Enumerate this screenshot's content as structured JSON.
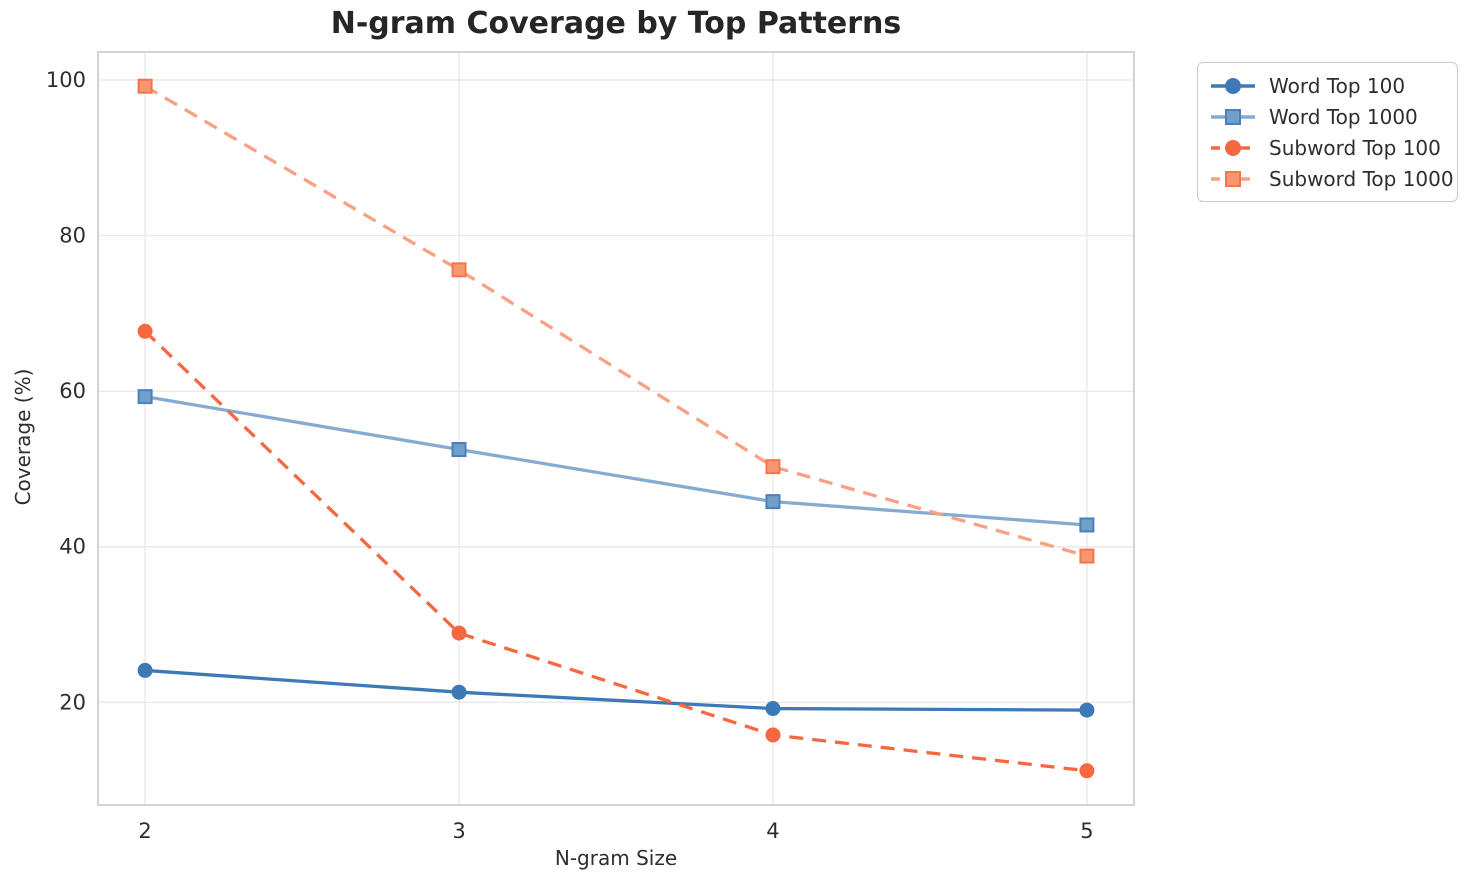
{
  "chart_data": {
    "type": "line",
    "title": "N-gram Coverage by Top Patterns",
    "xlabel": "N-gram Size",
    "ylabel": "Coverage (%)",
    "x": [
      2,
      3,
      4,
      5
    ],
    "xticks": [
      "2",
      "3",
      "4",
      "5"
    ],
    "yticks": [
      "20",
      "40",
      "60",
      "80",
      "100"
    ],
    "ytick_values": [
      20,
      40,
      60,
      80,
      100
    ],
    "xlim": [
      1.85,
      5.15
    ],
    "ylim": [
      6.8,
      103.6
    ],
    "grid": true,
    "legend_position": "outside-top-right",
    "series": [
      {
        "name": "Word Top 100",
        "values": [
          24.1,
          21.3,
          19.2,
          19.0
        ],
        "color": "#3c79b6",
        "marker": "circle",
        "marker_fill": "#3c79b6",
        "marker_stroke": "#3c79b6",
        "line_style": "solid"
      },
      {
        "name": "Word Top 1000",
        "values": [
          59.3,
          52.5,
          45.8,
          42.8
        ],
        "color": "#85abd1",
        "marker": "square",
        "marker_fill": "#6f9fca",
        "marker_stroke": "#4b81b8",
        "line_style": "solid"
      },
      {
        "name": "Subword Top 100",
        "values": [
          67.7,
          28.9,
          15.8,
          11.2
        ],
        "color": "#f56840",
        "marker": "circle",
        "marker_fill": "#f56840",
        "marker_stroke": "#f56840",
        "line_style": "dashed"
      },
      {
        "name": "Subword Top 1000",
        "values": [
          99.2,
          75.6,
          50.3,
          38.8
        ],
        "color": "#f9a183",
        "marker": "square",
        "marker_fill": "#f79771",
        "marker_stroke": "#f4764a",
        "line_style": "dashed"
      }
    ],
    "style": {
      "grid_color": "#e9e9ec",
      "spine_color": "#cfcfcf",
      "text_color": "#2e2e2e",
      "title_color": "#262626",
      "background": "#ffffff"
    }
  }
}
